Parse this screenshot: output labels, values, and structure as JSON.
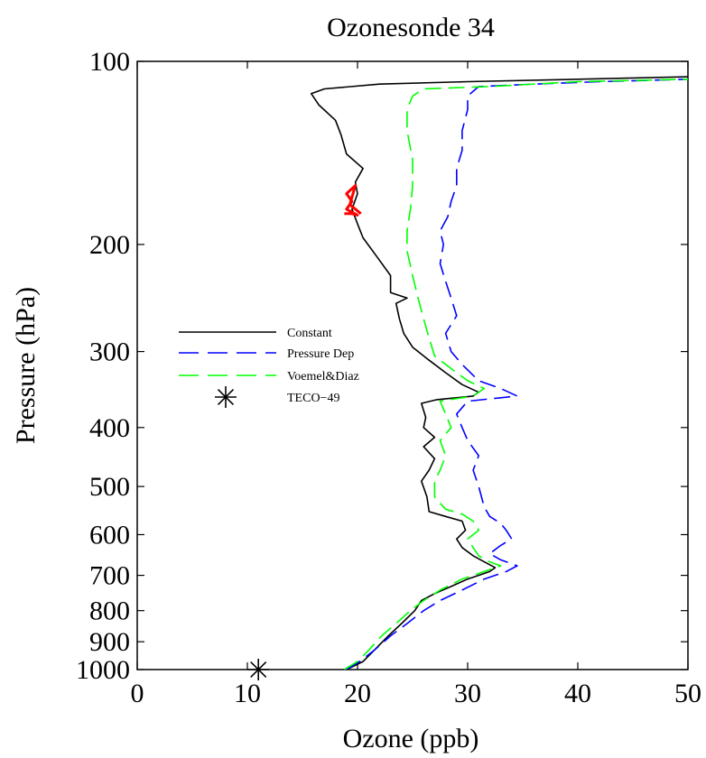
{
  "chart_data": {
    "type": "line",
    "title": "Ozonesonde 34",
    "xlabel": "Ozone (ppb)",
    "ylabel": "Pressure (hPa)",
    "xlim": [
      0,
      50
    ],
    "ylim": [
      1000,
      100
    ],
    "y_scale": "log",
    "y_reversed": true,
    "grid": false,
    "legend_position": "middle-left",
    "x_ticks": [
      0,
      10,
      20,
      30,
      40,
      50
    ],
    "y_ticks": [
      100,
      200,
      300,
      400,
      500,
      600,
      700,
      800,
      900,
      1000
    ],
    "series": [
      {
        "name": "Constant",
        "color": "#000000",
        "style": "solid",
        "points": [
          [
            19.0,
            1000
          ],
          [
            20.5,
            970
          ],
          [
            21.5,
            930
          ],
          [
            22.8,
            880
          ],
          [
            24.0,
            840
          ],
          [
            25.2,
            800
          ],
          [
            25.8,
            770
          ],
          [
            27.0,
            750
          ],
          [
            28.5,
            730
          ],
          [
            30.0,
            710
          ],
          [
            32.0,
            690
          ],
          [
            32.5,
            680
          ],
          [
            31.5,
            665
          ],
          [
            30.5,
            650
          ],
          [
            29.5,
            630
          ],
          [
            29.0,
            610
          ],
          [
            29.8,
            590
          ],
          [
            29.5,
            570
          ],
          [
            28.0,
            560
          ],
          [
            26.5,
            550
          ],
          [
            26.3,
            520
          ],
          [
            25.8,
            490
          ],
          [
            26.5,
            470
          ],
          [
            27.0,
            450
          ],
          [
            26.0,
            430
          ],
          [
            27.0,
            415
          ],
          [
            26.0,
            400
          ],
          [
            26.2,
            385
          ],
          [
            25.8,
            365
          ],
          [
            27.2,
            360
          ],
          [
            30.5,
            355
          ],
          [
            31.0,
            350
          ],
          [
            29.5,
            340
          ],
          [
            28.0,
            325
          ],
          [
            26.5,
            310
          ],
          [
            25.0,
            295
          ],
          [
            24.2,
            280
          ],
          [
            23.8,
            265
          ],
          [
            23.5,
            250
          ],
          [
            24.5,
            245
          ],
          [
            23.0,
            240
          ],
          [
            23.0,
            225
          ],
          [
            21.8,
            210
          ],
          [
            20.5,
            195
          ],
          [
            20.0,
            185
          ],
          [
            19.5,
            175
          ],
          [
            20.0,
            165
          ],
          [
            19.8,
            158
          ],
          [
            20.5,
            150
          ],
          [
            19.0,
            142
          ],
          [
            18.5,
            132
          ],
          [
            18.0,
            125
          ],
          [
            16.5,
            118
          ],
          [
            15.8,
            113
          ],
          [
            17.0,
            111
          ],
          [
            22.0,
            109
          ],
          [
            30.0,
            108
          ],
          [
            40.0,
            107
          ],
          [
            50.0,
            106
          ]
        ]
      },
      {
        "name": "Pressure Dep",
        "color": "#0000ff",
        "style": "dashed",
        "points": [
          [
            19.0,
            1000
          ],
          [
            20.2,
            970
          ],
          [
            21.5,
            930
          ],
          [
            23.0,
            880
          ],
          [
            24.5,
            840
          ],
          [
            26.0,
            800
          ],
          [
            27.5,
            770
          ],
          [
            29.5,
            740
          ],
          [
            31.5,
            710
          ],
          [
            33.5,
            690
          ],
          [
            34.5,
            675
          ],
          [
            33.0,
            660
          ],
          [
            32.0,
            645
          ],
          [
            33.0,
            625
          ],
          [
            34.0,
            610
          ],
          [
            33.5,
            590
          ],
          [
            33.0,
            575
          ],
          [
            32.0,
            560
          ],
          [
            31.5,
            540
          ],
          [
            31.0,
            500
          ],
          [
            30.5,
            470
          ],
          [
            31.0,
            445
          ],
          [
            30.0,
            420
          ],
          [
            29.5,
            400
          ],
          [
            29.0,
            380
          ],
          [
            30.0,
            362
          ],
          [
            34.5,
            355
          ],
          [
            33.0,
            345
          ],
          [
            31.0,
            335
          ],
          [
            29.5,
            315
          ],
          [
            28.5,
            300
          ],
          [
            28.0,
            280
          ],
          [
            29.0,
            262
          ],
          [
            28.5,
            245
          ],
          [
            28.0,
            230
          ],
          [
            27.5,
            215
          ],
          [
            27.8,
            200
          ],
          [
            27.5,
            190
          ],
          [
            28.2,
            180
          ],
          [
            28.5,
            170
          ],
          [
            29.0,
            160
          ],
          [
            29.0,
            150
          ],
          [
            29.5,
            140
          ],
          [
            29.5,
            130
          ],
          [
            30.0,
            120
          ],
          [
            30.0,
            114
          ],
          [
            31.0,
            110
          ],
          [
            36.0,
            109
          ],
          [
            42.0,
            108
          ],
          [
            50.0,
            107
          ]
        ]
      },
      {
        "name": "Voemel&Diaz",
        "color": "#00ff00",
        "style": "dashed",
        "points": [
          [
            18.8,
            1000
          ],
          [
            20.0,
            970
          ],
          [
            21.0,
            930
          ],
          [
            22.2,
            880
          ],
          [
            23.5,
            840
          ],
          [
            24.8,
            800
          ],
          [
            26.0,
            770
          ],
          [
            27.5,
            740
          ],
          [
            29.5,
            710
          ],
          [
            31.5,
            690
          ],
          [
            33.0,
            675
          ],
          [
            32.0,
            665
          ],
          [
            31.0,
            650
          ],
          [
            30.5,
            630
          ],
          [
            30.0,
            610
          ],
          [
            31.0,
            590
          ],
          [
            30.5,
            570
          ],
          [
            29.5,
            555
          ],
          [
            28.0,
            545
          ],
          [
            27.0,
            520
          ],
          [
            27.0,
            490
          ],
          [
            27.5,
            470
          ],
          [
            28.0,
            445
          ],
          [
            27.5,
            420
          ],
          [
            28.5,
            400
          ],
          [
            28.0,
            380
          ],
          [
            27.5,
            362
          ],
          [
            30.5,
            355
          ],
          [
            31.5,
            345
          ],
          [
            30.0,
            335
          ],
          [
            28.5,
            320
          ],
          [
            27.0,
            305
          ],
          [
            26.5,
            285
          ],
          [
            26.0,
            265
          ],
          [
            25.5,
            245
          ],
          [
            25.0,
            225
          ],
          [
            24.5,
            205
          ],
          [
            24.5,
            190
          ],
          [
            24.8,
            175
          ],
          [
            25.0,
            160
          ],
          [
            25.0,
            145
          ],
          [
            24.5,
            130
          ],
          [
            24.5,
            120
          ],
          [
            25.0,
            114
          ],
          [
            26.0,
            111
          ],
          [
            32.0,
            110
          ],
          [
            40.0,
            108
          ],
          [
            50.0,
            107
          ]
        ]
      },
      {
        "name": "",
        "color": "#ff0000",
        "style": "solid",
        "points": [
          [
            18.8,
            178
          ],
          [
            19.5,
            178
          ],
          [
            20.0,
            179
          ],
          [
            19.0,
            175
          ],
          [
            19.5,
            170
          ],
          [
            19.0,
            165
          ],
          [
            19.8,
            160
          ],
          [
            19.3,
            172
          ],
          [
            20.3,
            178
          ]
        ]
      }
    ],
    "markers": [
      {
        "name": "TECO−49",
        "marker": "asterisk",
        "color": "#000000",
        "x": 11,
        "y": 1000
      }
    ]
  }
}
